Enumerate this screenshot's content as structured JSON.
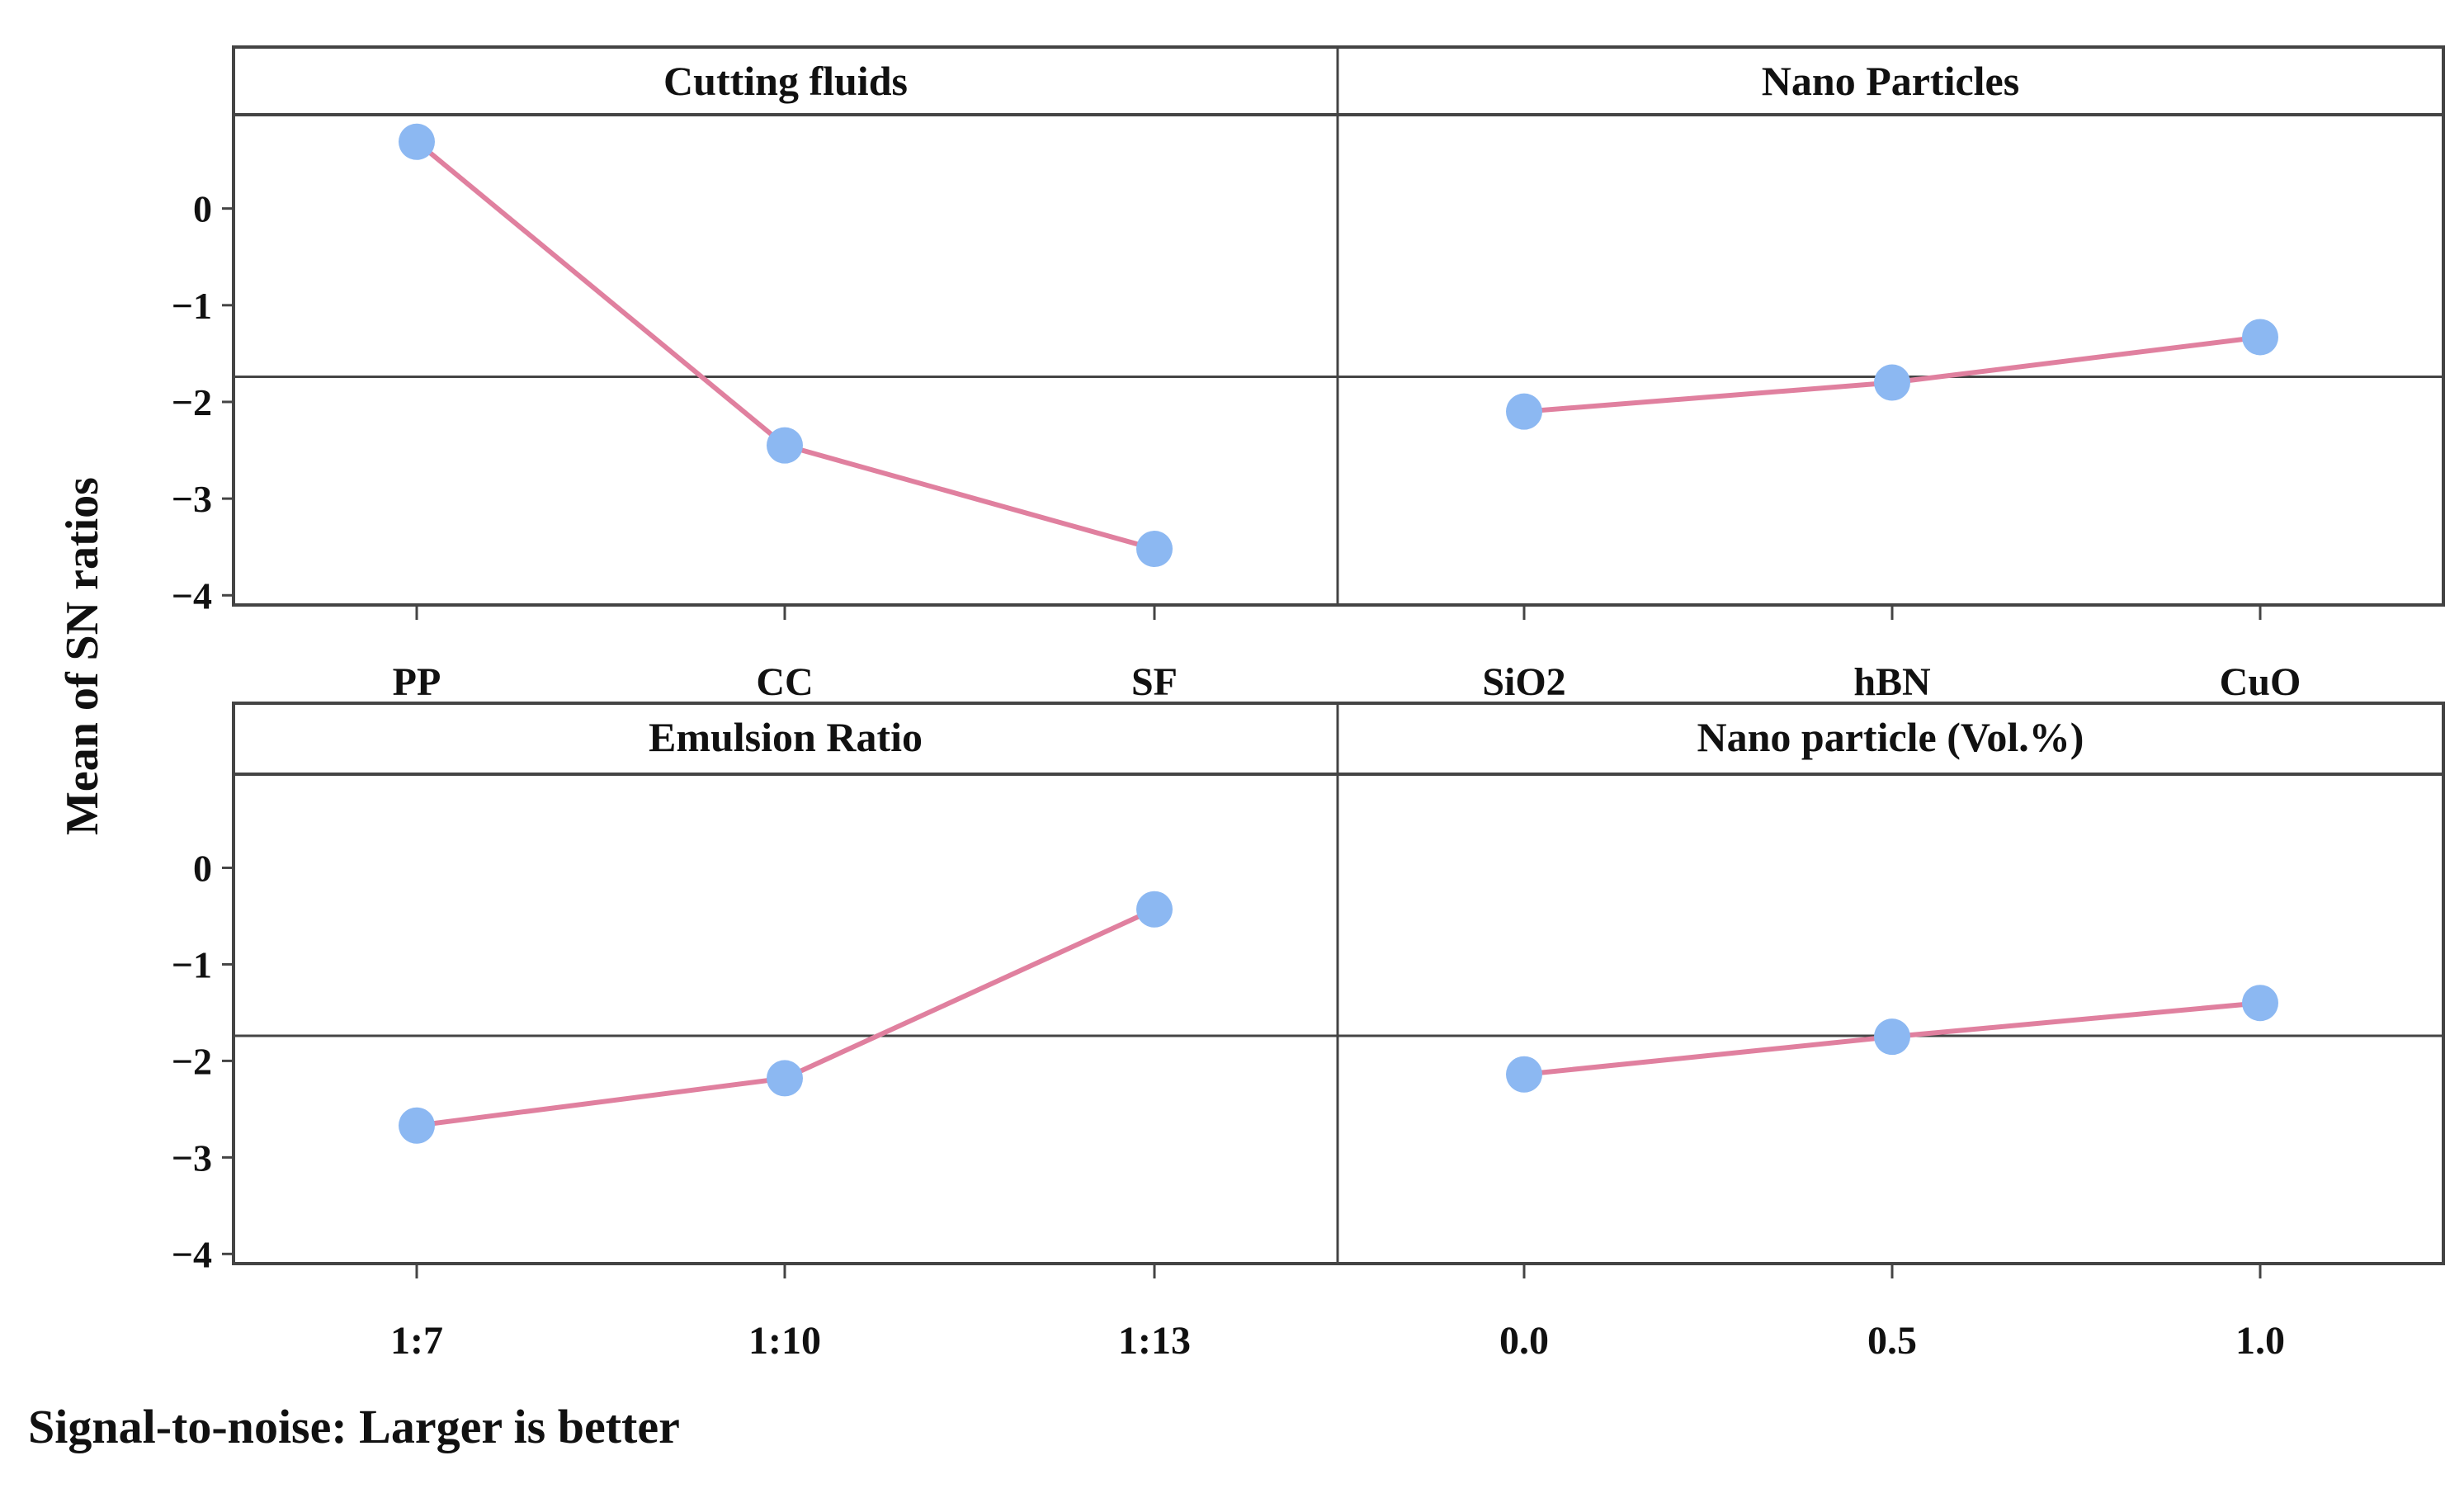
{
  "chart_data": {
    "type": "line",
    "title": "",
    "ylabel": "Mean of SN ratios",
    "footnote": "Signal-to-noise: Larger is better",
    "ylim": [
      -4.1,
      0.97
    ],
    "yticks": [
      0,
      -1,
      -2,
      -3,
      -4
    ],
    "ytick_labels": [
      "0",
      "−1",
      "−2",
      "−3",
      "−4"
    ],
    "grand_mean": -1.74,
    "colors": {
      "line": "#e0809f",
      "marker": "#8cb8f2",
      "frame": "#444444"
    },
    "panels": [
      {
        "title": "Cutting fluids",
        "categories": [
          "PP",
          "CC",
          "SF"
        ],
        "values": [
          0.69,
          -2.45,
          -3.52
        ]
      },
      {
        "title": "Nano Particles",
        "categories": [
          "SiO2",
          "hBN",
          "CuO"
        ],
        "values": [
          -2.1,
          -1.8,
          -1.33
        ]
      },
      {
        "title": "Emulsion Ratio",
        "categories": [
          "1:7",
          "1:10",
          "1:13"
        ],
        "values": [
          -2.67,
          -2.18,
          -0.43
        ]
      },
      {
        "title": "Nano particle (Vol.%)",
        "categories": [
          "0.0",
          "0.5",
          "1.0"
        ],
        "values": [
          -2.14,
          -1.75,
          -1.4
        ]
      }
    ]
  }
}
